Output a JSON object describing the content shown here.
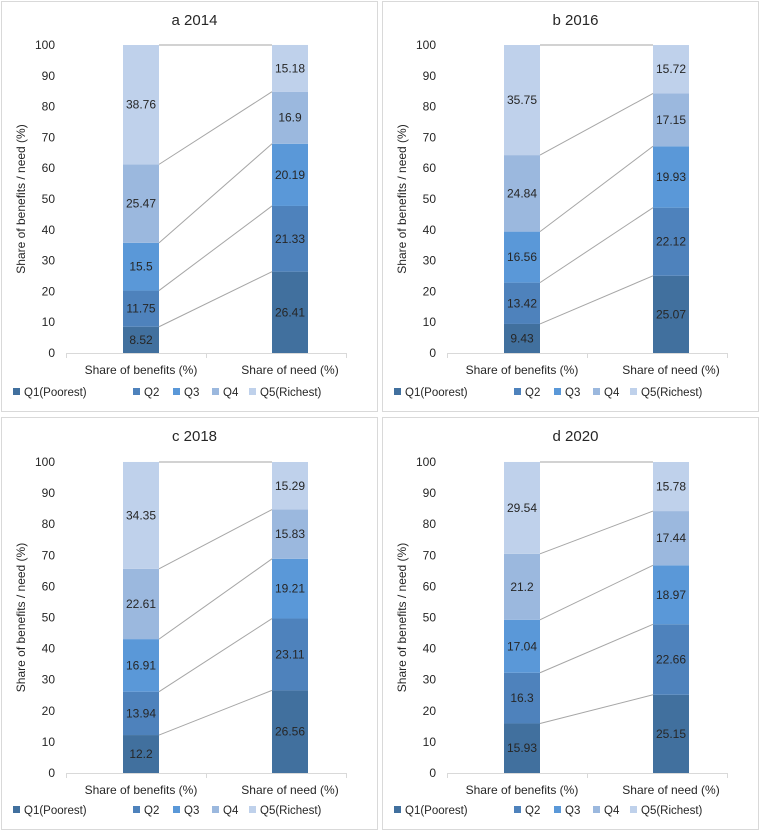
{
  "chart_data": [
    {
      "type": "bar",
      "stacked": true,
      "title": "a  2014",
      "ylabel": "Share of benefits / need (%)",
      "xlabel": "",
      "ylim": [
        0,
        100
      ],
      "yticks": [
        0,
        10,
        20,
        30,
        40,
        50,
        60,
        70,
        80,
        90,
        100
      ],
      "categories": [
        "Share of benefits (%)",
        "Share of  need (%)"
      ],
      "series": [
        {
          "name": "Q1(Poorest)",
          "color": "#41709e",
          "values": [
            8.52,
            26.41
          ]
        },
        {
          "name": "Q2",
          "color": "#4e82bc",
          "values": [
            11.75,
            21.33
          ]
        },
        {
          "name": "Q3",
          "color": "#5a98d8",
          "values": [
            15.5,
            20.19
          ]
        },
        {
          "name": "Q4",
          "color": "#9bb8de",
          "values": [
            25.47,
            16.9
          ]
        },
        {
          "name": "Q5(Richest)",
          "color": "#bfd1eb",
          "values": [
            38.76,
            15.18
          ]
        }
      ],
      "legend": "bottom"
    },
    {
      "type": "bar",
      "stacked": true,
      "title": "b  2016",
      "ylabel": "Share of benefits / need (%)",
      "xlabel": "",
      "ylim": [
        0,
        100
      ],
      "yticks": [
        0,
        10,
        20,
        30,
        40,
        50,
        60,
        70,
        80,
        90,
        100
      ],
      "categories": [
        "Share of benefits (%)",
        "Share of  need (%)"
      ],
      "series": [
        {
          "name": "Q1(Poorest)",
          "color": "#41709e",
          "values": [
            9.43,
            25.07
          ]
        },
        {
          "name": "Q2",
          "color": "#4e82bc",
          "values": [
            13.42,
            22.12
          ]
        },
        {
          "name": "Q3",
          "color": "#5a98d8",
          "values": [
            16.56,
            19.93
          ]
        },
        {
          "name": "Q4",
          "color": "#9bb8de",
          "values": [
            24.84,
            17.15
          ]
        },
        {
          "name": "Q5(Richest)",
          "color": "#bfd1eb",
          "values": [
            35.75,
            15.72
          ]
        }
      ],
      "legend": "bottom"
    },
    {
      "type": "bar",
      "stacked": true,
      "title": "c  2018",
      "ylabel": "Share of benefits / need (%)",
      "xlabel": "",
      "ylim": [
        0,
        100
      ],
      "yticks": [
        0,
        10,
        20,
        30,
        40,
        50,
        60,
        70,
        80,
        90,
        100
      ],
      "categories": [
        "Share of benefits (%)",
        "Share of  need (%)"
      ],
      "series": [
        {
          "name": "Q1(Poorest)",
          "color": "#41709e",
          "values": [
            12.2,
            26.56
          ]
        },
        {
          "name": "Q2",
          "color": "#4e82bc",
          "values": [
            13.94,
            23.11
          ]
        },
        {
          "name": "Q3",
          "color": "#5a98d8",
          "values": [
            16.91,
            19.21
          ]
        },
        {
          "name": "Q4",
          "color": "#9bb8de",
          "values": [
            22.61,
            15.83
          ]
        },
        {
          "name": "Q5(Richest)",
          "color": "#bfd1eb",
          "values": [
            34.35,
            15.29
          ]
        }
      ],
      "legend": "bottom"
    },
    {
      "type": "bar",
      "stacked": true,
      "title": "d  2020",
      "ylabel": "Share of benefits / need (%)",
      "xlabel": "",
      "ylim": [
        0,
        100
      ],
      "yticks": [
        0,
        10,
        20,
        30,
        40,
        50,
        60,
        70,
        80,
        90,
        100
      ],
      "categories": [
        "Share of benefits (%)",
        "Share of  need (%)"
      ],
      "series": [
        {
          "name": "Q1(Poorest)",
          "color": "#41709e",
          "values": [
            15.93,
            25.15
          ]
        },
        {
          "name": "Q2",
          "color": "#4e82bc",
          "values": [
            16.3,
            22.66
          ]
        },
        {
          "name": "Q3",
          "color": "#5a98d8",
          "values": [
            17.04,
            18.97
          ]
        },
        {
          "name": "Q4",
          "color": "#9bb8de",
          "values": [
            21.2,
            17.44
          ]
        },
        {
          "name": "Q5(Richest)",
          "color": "#bfd1eb",
          "values": [
            29.54,
            15.78
          ]
        }
      ],
      "legend": "bottom"
    }
  ],
  "colors": {
    "panel_border": "#d9d9d9",
    "axis": "#d9d9d9",
    "connector": "#a6a6a6",
    "text": "#262626"
  }
}
